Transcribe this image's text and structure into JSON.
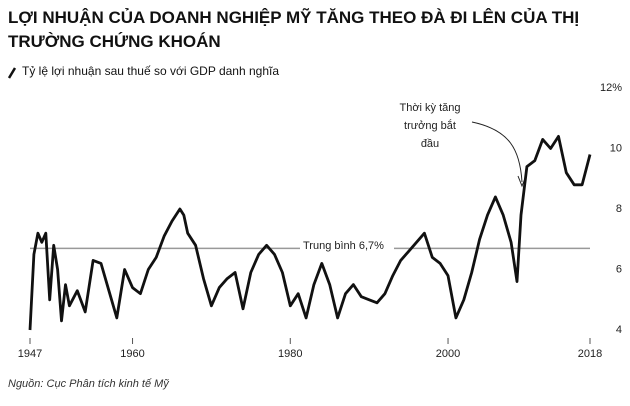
{
  "chart_data": {
    "type": "line",
    "title": "LỢI NHUẬN CỦA DOANH NGHIỆP MỸ TĂNG THEO ĐÀ ĐI LÊN CỦA THỊ TRƯỜNG CHỨNG KHOÁN",
    "subtitle": "Tỷ lệ lợi nhuận sau thuế so với GDP danh nghĩa",
    "source": "Nguồn: Cục Phân tích kinh tế Mỹ",
    "annotation": {
      "lines": [
        "Thời kỳ tăng",
        "trưởng bắt",
        "đầu"
      ]
    },
    "average": {
      "value": 6.7,
      "label": "Trung bình 6,7%"
    },
    "x": [
      1947,
      1947.5,
      1948,
      1948.5,
      1949,
      1949.5,
      1950,
      1950.5,
      1951,
      1951.5,
      1952,
      1953,
      1954,
      1955,
      1956,
      1957,
      1958,
      1959,
      1960,
      1961,
      1962,
      1963,
      1964,
      1965,
      1966,
      1966.5,
      1967,
      1968,
      1969,
      1970,
      1971,
      1972,
      1973,
      1974,
      1975,
      1976,
      1977,
      1978,
      1979,
      1980,
      1981,
      1982,
      1983,
      1984,
      1985,
      1986,
      1987,
      1988,
      1989,
      1990,
      1991,
      1992,
      1993,
      1994,
      1995,
      1996,
      1997,
      1998,
      1999,
      2000,
      2001,
      2002,
      2003,
      2004,
      2005,
      2006,
      2007,
      2008,
      2008.75,
      2009.25,
      2010,
      2011,
      2012,
      2013,
      2014,
      2015,
      2016,
      2017,
      2018
    ],
    "series": [
      {
        "color": "#111111",
        "values": [
          4.0,
          6.5,
          7.2,
          6.9,
          7.2,
          5.0,
          6.8,
          6.0,
          4.3,
          5.5,
          4.8,
          5.3,
          4.6,
          6.3,
          6.2,
          5.3,
          4.4,
          6.0,
          5.4,
          5.2,
          6.0,
          6.4,
          7.1,
          7.6,
          8.0,
          7.8,
          7.2,
          6.8,
          5.7,
          4.8,
          5.4,
          5.7,
          5.9,
          4.7,
          5.9,
          6.5,
          6.8,
          6.5,
          5.9,
          4.8,
          5.2,
          4.4,
          5.5,
          6.2,
          5.5,
          4.4,
          5.2,
          5.5,
          5.1,
          5.0,
          4.9,
          5.2,
          5.8,
          6.3,
          6.6,
          6.9,
          7.2,
          6.4,
          6.2,
          5.8,
          4.4,
          5.0,
          5.9,
          7.0,
          7.8,
          8.4,
          7.8,
          6.9,
          5.6,
          7.8,
          9.4,
          9.6,
          10.3,
          10.0,
          10.4,
          9.2,
          8.8,
          8.8,
          9.8
        ]
      }
    ],
    "xlim": [
      1947,
      2018
    ],
    "xticks": [
      1947,
      1960,
      1980,
      2000,
      2018
    ],
    "ylim": [
      4,
      12
    ],
    "yticks": [
      4,
      6,
      8,
      10,
      {
        "value": 12,
        "label": "12%"
      }
    ],
    "grid": false
  }
}
